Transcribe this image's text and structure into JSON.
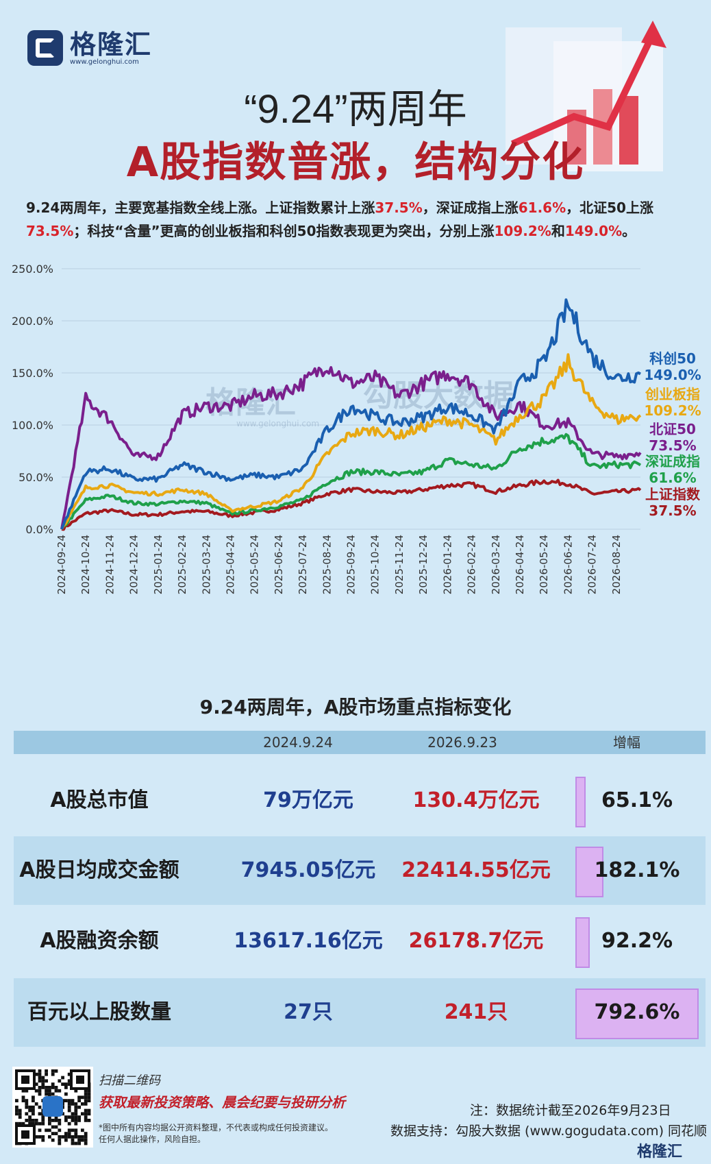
{
  "header": {
    "logo_name": "格隆汇",
    "logo_url": "www.gelonghui.com",
    "title_line1": "“9.24”两周年",
    "title_line2": "A股指数普涨，结构分化"
  },
  "intro": {
    "p1": "9.24两周年，主要宽基指数全线上涨。上证指数累计上涨",
    "v1": "37.5%",
    "p2": "，深证成指上涨",
    "v2": "61.6%",
    "p3": "，北证50上涨",
    "v3": "73.5%",
    "p4": "；科技“含量”更高的创业板指和科创50指数表现更为突出，分别上涨",
    "v4": "109.2%",
    "p5": "和",
    "v5": "149.0%",
    "p6": "。"
  },
  "watermarks": {
    "w1": "格隆汇",
    "w1_url": "www.gelonghui.com",
    "w2": "勾股大数据",
    "w2_url": "www.gogudata.com"
  },
  "chart_data": {
    "type": "line",
    "x": [
      "2024-09-24",
      "2024-10-24",
      "2024-11-24",
      "2024-12-24",
      "2025-01-24",
      "2025-02-24",
      "2025-03-24",
      "2025-04-24",
      "2025-05-24",
      "2025-06-24",
      "2025-07-24",
      "2025-08-24",
      "2025-09-24",
      "2025-10-24",
      "2025-11-24",
      "2025-12-24",
      "2026-01-24",
      "2026-02-24",
      "2026-03-24",
      "2026-04-24",
      "2026-05-24",
      "2026-06-24",
      "2026-07-24",
      "2026-08-24",
      "2026-09-23"
    ],
    "ylim": [
      0,
      250
    ],
    "yticks": [
      "0.0%",
      "50.0%",
      "100.0%",
      "150.0%",
      "200.0%",
      "250.0%"
    ],
    "grid": true,
    "series": [
      {
        "name": "科创50",
        "value_label": "149.0%",
        "color": "#1a5fb0",
        "values": [
          0,
          55,
          58,
          48,
          48,
          62,
          55,
          48,
          52,
          50,
          58,
          95,
          118,
          108,
          102,
          108,
          118,
          110,
          95,
          140,
          160,
          215,
          165,
          145,
          149
        ]
      },
      {
        "name": "创业板指",
        "value_label": "109.2%",
        "color": "#e8a812",
        "values": [
          0,
          40,
          42,
          35,
          34,
          38,
          34,
          18,
          22,
          27,
          40,
          72,
          92,
          95,
          90,
          98,
          105,
          100,
          85,
          110,
          125,
          160,
          120,
          105,
          109.2
        ]
      },
      {
        "name": "北证50",
        "value_label": "73.5%",
        "color": "#7a1f8c",
        "values": [
          0,
          125,
          105,
          70,
          70,
          110,
          118,
          118,
          128,
          130,
          140,
          158,
          140,
          145,
          128,
          140,
          150,
          140,
          108,
          120,
          100,
          102,
          72,
          70,
          73.5
        ]
      },
      {
        "name": "深证成指",
        "value_label": "61.6%",
        "color": "#1fa04a",
        "values": [
          0,
          28,
          32,
          25,
          24,
          27,
          25,
          15,
          18,
          22,
          28,
          45,
          55,
          55,
          52,
          55,
          66,
          62,
          58,
          78,
          85,
          88,
          60,
          62,
          61.6
        ]
      },
      {
        "name": "上证指数",
        "value_label": "37.5%",
        "color": "#a31a1f",
        "values": [
          0,
          15,
          18,
          14,
          14,
          17,
          17,
          13,
          16,
          19,
          25,
          34,
          38,
          36,
          35,
          38,
          42,
          43,
          36,
          42,
          46,
          44,
          34,
          36,
          37.5
        ]
      }
    ]
  },
  "table": {
    "title": "9.24两周年，A股市场重点指标变化",
    "headers": [
      "2024.9.24",
      "2026.9.23",
      "增幅"
    ],
    "rows": [
      {
        "name": "A股总市值",
        "old": "79万亿元",
        "new": "130.4万亿元",
        "pct": "65.1%",
        "pct_value": 65.1
      },
      {
        "name": "A股日均成交金额",
        "old": "7945.05亿元",
        "new": "22414.55亿元",
        "pct": "182.1%",
        "pct_value": 182.1
      },
      {
        "name": "A股融资余额",
        "old": "13617.16亿元",
        "new": "26178.7亿元",
        "pct": "92.2%",
        "pct_value": 92.2
      },
      {
        "name": "百元以上股数量",
        "old": "27只",
        "new": "241只",
        "pct": "792.6%",
        "pct_value": 792.6
      }
    ]
  },
  "footer": {
    "scan": "扫描二维码",
    "slogan": "获取最新投资策略、晨会纪要与投研分析",
    "disclaimer1": "*图中所有内容均据公开资料整理，不代表或构成任何投资建议。",
    "disclaimer2": "任何人据此操作，风险自担。",
    "note": "注：数据统计截至2026年9月23日",
    "source": "数据支持：勾股大数据  (www.gogudata.com) 同花顺",
    "brand": "格隆汇"
  },
  "colors": {
    "title_red": "#b3202a",
    "accent_red": "#d8232a",
    "bar_purple": "#dcb2f2",
    "bg": "#d3e9f7"
  }
}
